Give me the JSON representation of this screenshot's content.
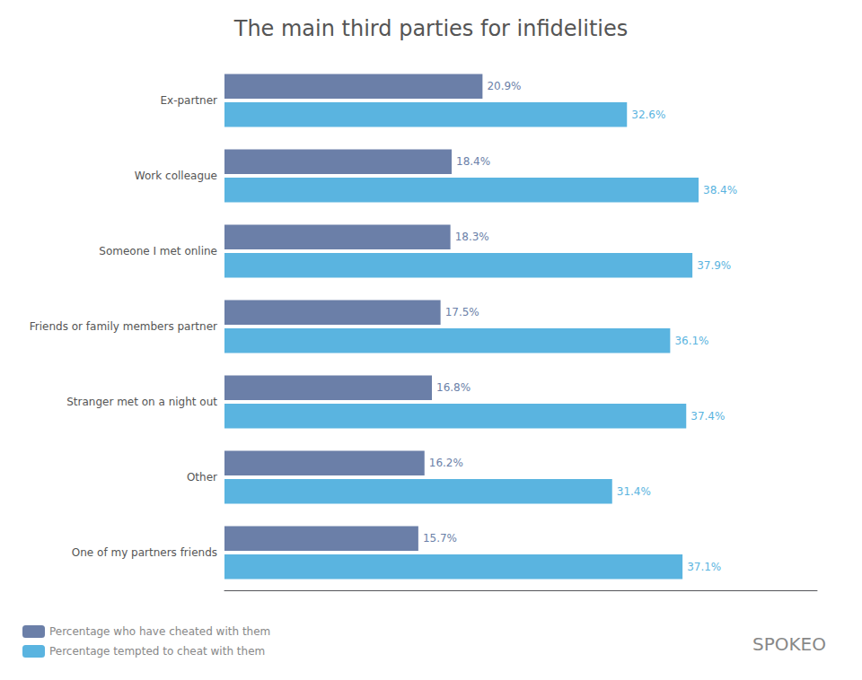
{
  "chart_data": {
    "type": "bar",
    "orientation": "horizontal",
    "title": "The main third parties for infidelities",
    "categories": [
      "Ex-partner",
      "Work colleague",
      "Someone I met online",
      "Friends or family members partner",
      "Stranger met on a night out",
      "Other",
      "One of my partners friends"
    ],
    "series": [
      {
        "name": "Percentage who have cheated with them",
        "color": "#6b7fa8",
        "values": [
          20.9,
          18.4,
          18.3,
          17.5,
          16.8,
          16.2,
          15.7
        ],
        "value_labels": [
          "20.9%",
          "18.4%",
          "18.3%",
          "17.5%",
          "16.8%",
          "16.2%",
          "15.7%"
        ]
      },
      {
        "name": "Percentage tempted to cheat with them",
        "color": "#5ab4e0",
        "values": [
          32.6,
          38.4,
          37.9,
          36.1,
          37.4,
          31.4,
          37.1
        ],
        "value_labels": [
          "32.6%",
          "38.4%",
          "37.9%",
          "36.1%",
          "37.4%",
          "31.4%",
          "37.1%"
        ]
      }
    ],
    "xlim": [
      0,
      48
    ],
    "grid": false,
    "legend": "lower left",
    "data_labels": true,
    "tick_labels": "y",
    "annotations": [
      "SPOKEO"
    ]
  }
}
